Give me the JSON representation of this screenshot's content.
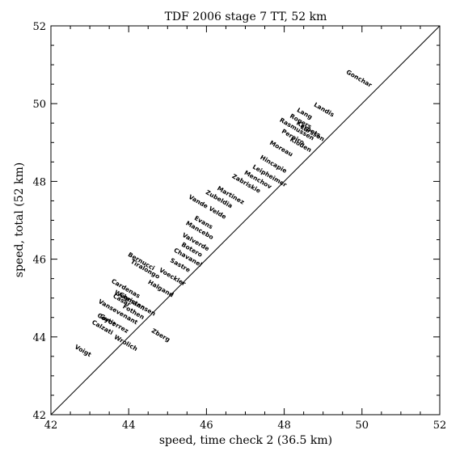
{
  "chart_data": {
    "type": "scatter",
    "title": "TDF 2006 stage 7 TT, 52 km",
    "xlabel": "speed, time check 2 (36.5 km)",
    "ylabel": "speed, total (52 km)",
    "xlim": [
      42,
      52
    ],
    "ylim": [
      42,
      52
    ],
    "xticks": [
      "42",
      "44",
      "46",
      "48",
      "50",
      "52"
    ],
    "yticks": [
      "42",
      "44",
      "46",
      "48",
      "50",
      "52"
    ],
    "grid": false,
    "reference_line": "y = x",
    "point_style": "rider name printed at its data point, text rotated about -30 degrees",
    "points": [
      {
        "label": "Gonchar",
        "x": 49.9,
        "y": 50.6
      },
      {
        "label": "Landis",
        "x": 49.0,
        "y": 49.8
      },
      {
        "label": "Lang",
        "x": 48.5,
        "y": 49.7
      },
      {
        "label": "Rogers",
        "x": 48.4,
        "y": 49.5
      },
      {
        "label": "Karpets",
        "x": 48.6,
        "y": 49.3
      },
      {
        "label": "Larsson",
        "x": 48.7,
        "y": 49.2
      },
      {
        "label": "Rasmussen",
        "x": 48.3,
        "y": 49.3
      },
      {
        "label": "Pereiro",
        "x": 48.2,
        "y": 49.1
      },
      {
        "label": "Kloden",
        "x": 48.4,
        "y": 48.9
      },
      {
        "label": "Moreau",
        "x": 47.9,
        "y": 48.8
      },
      {
        "label": "Hincapie",
        "x": 47.7,
        "y": 48.4
      },
      {
        "label": "Leipheimer",
        "x": 47.6,
        "y": 48.1
      },
      {
        "label": "Menchov",
        "x": 47.3,
        "y": 48.0
      },
      {
        "label": "Zabriskie",
        "x": 47.0,
        "y": 47.9
      },
      {
        "label": "Martinez",
        "x": 46.6,
        "y": 47.6
      },
      {
        "label": "Zubeldia",
        "x": 46.3,
        "y": 47.5
      },
      {
        "label": "Vande Velde",
        "x": 46.0,
        "y": 47.3
      },
      {
        "label": "Evans",
        "x": 45.9,
        "y": 46.9
      },
      {
        "label": "Mancebo",
        "x": 45.8,
        "y": 46.7
      },
      {
        "label": "Valverde",
        "x": 45.7,
        "y": 46.4
      },
      {
        "label": "Botero",
        "x": 45.6,
        "y": 46.2
      },
      {
        "label": "Chavanel",
        "x": 45.5,
        "y": 46.0
      },
      {
        "label": "Sastre",
        "x": 45.3,
        "y": 45.8
      },
      {
        "label": "Voeckler",
        "x": 45.1,
        "y": 45.5
      },
      {
        "label": "Halgand",
        "x": 44.8,
        "y": 45.2
      },
      {
        "label": "Tiralongo",
        "x": 44.4,
        "y": 45.7
      },
      {
        "label": "Bernucci",
        "x": 44.3,
        "y": 45.9
      },
      {
        "label": "Christensen",
        "x": 44.2,
        "y": 44.8
      },
      {
        "label": "Fothen",
        "x": 44.1,
        "y": 44.6
      },
      {
        "label": "Wegmann",
        "x": 44.0,
        "y": 44.9
      },
      {
        "label": "Cardenas",
        "x": 43.9,
        "y": 45.2
      },
      {
        "label": "Casar",
        "x": 43.8,
        "y": 44.9
      },
      {
        "label": "Vansevenant",
        "x": 43.7,
        "y": 44.6
      },
      {
        "label": "Gutierrez",
        "x": 43.6,
        "y": 44.3
      },
      {
        "label": "Coyot",
        "x": 43.4,
        "y": 44.4
      },
      {
        "label": "Calzati",
        "x": 43.3,
        "y": 44.2
      },
      {
        "label": "Zberg",
        "x": 44.8,
        "y": 44.0
      },
      {
        "label": "Wrolich",
        "x": 43.9,
        "y": 43.8
      },
      {
        "label": "Voigt",
        "x": 42.8,
        "y": 43.6
      }
    ]
  }
}
